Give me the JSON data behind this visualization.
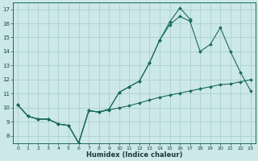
{
  "xlabel": "Humidex (Indice chaleur)",
  "bg_color": "#cce8e8",
  "line_color": "#1a6b5a",
  "xlim": [
    -0.5,
    23.5
  ],
  "ylim": [
    7.5,
    17.5
  ],
  "xticks": [
    0,
    1,
    2,
    3,
    4,
    5,
    6,
    7,
    8,
    9,
    10,
    11,
    12,
    13,
    14,
    15,
    16,
    17,
    18,
    19,
    20,
    21,
    22,
    23
  ],
  "yticks": [
    8,
    9,
    10,
    11,
    12,
    13,
    14,
    15,
    16,
    17
  ],
  "series": [
    {
      "x": [
        0,
        1,
        2,
        3,
        4,
        5,
        6,
        7,
        8,
        9,
        10,
        11,
        12,
        13,
        14,
        15,
        16,
        17
      ],
      "y": [
        10.2,
        9.4,
        9.2,
        9.2,
        8.85,
        8.75,
        7.5,
        9.8,
        9.7,
        9.9,
        11.1,
        11.5,
        11.9,
        13.2,
        14.8,
        16.1,
        17.1,
        16.3
      ]
    },
    {
      "x": [
        0,
        1,
        2,
        3,
        4,
        5,
        6,
        7,
        8,
        9,
        10,
        11,
        12,
        13,
        14,
        15,
        16,
        17,
        18,
        19,
        20,
        21,
        22,
        23
      ],
      "y": [
        10.2,
        9.4,
        9.2,
        9.2,
        8.85,
        8.75,
        7.5,
        9.8,
        9.7,
        9.85,
        10.0,
        10.15,
        10.35,
        10.55,
        10.75,
        10.9,
        11.05,
        11.2,
        11.35,
        11.5,
        11.65,
        11.7,
        11.85,
        12.0
      ]
    },
    {
      "x": [
        0,
        1,
        2,
        3,
        4,
        5,
        6,
        7,
        8,
        9,
        10,
        11,
        12,
        13,
        14,
        15,
        16,
        17,
        18,
        19,
        20,
        21,
        22,
        23
      ],
      "y": [
        10.2,
        9.4,
        9.2,
        9.2,
        8.85,
        8.75,
        7.5,
        9.8,
        9.7,
        9.9,
        11.1,
        11.5,
        11.9,
        13.2,
        14.8,
        15.9,
        16.5,
        16.15,
        14.0,
        14.5,
        15.7,
        14.0,
        12.5,
        11.2
      ]
    }
  ]
}
